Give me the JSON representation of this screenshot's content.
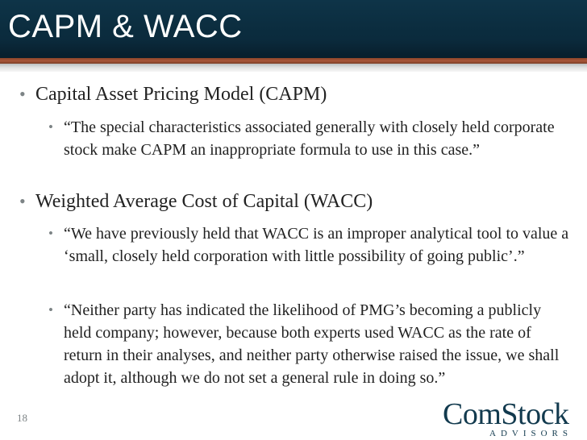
{
  "slide": {
    "title": "CAPM & WACC",
    "page_number": "18"
  },
  "bullets": [
    {
      "heading": "Capital Asset Pricing Model (CAPM)",
      "quotes": [
        "“The special characteristics associated generally with closely held corporate stock make CAPM an inappropriate formula to use in this case.”"
      ]
    },
    {
      "heading": "Weighted Average Cost of Capital (WACC)",
      "quotes": [
        "“We have previously held that WACC is an improper analytical tool to value a ‘small, closely held corporation with little possibility of going public’.”",
        "“Neither party has indicated the likelihood of PMG’s becoming a publicly held company; however, because both experts used WACC as the rate of return in their analyses, and neither party otherwise raised the issue, we shall adopt it, although we do not set a general rule in doing so.”"
      ]
    }
  ],
  "bullet_glyph": "•",
  "logo": {
    "main": "ComStock",
    "sub": "ADVISORS"
  },
  "colors": {
    "title_bar": "#0b2c3e",
    "accent_rule": "#a9573a",
    "logo": "#123a4e",
    "bullet": "#7d8486"
  }
}
